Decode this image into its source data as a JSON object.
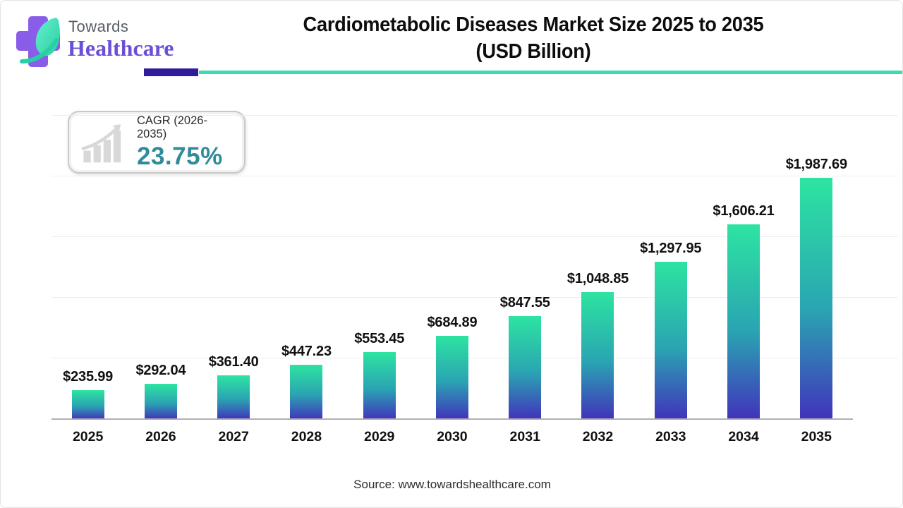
{
  "logo": {
    "brand_top": "Towards",
    "brand_bottom": "Healthcare"
  },
  "header": {
    "title_line1": "Cardiometabolic Diseases Market Size 2025 to 2035",
    "title_line2": "(USD Billion)"
  },
  "cagr_badge": {
    "label": "CAGR (2026-2035)",
    "value": "23.75%"
  },
  "chart_data": {
    "type": "bar",
    "title": "Cardiometabolic Diseases Market Size 2025 to 2035 (USD Billion)",
    "categories": [
      "2025",
      "2026",
      "2027",
      "2028",
      "2029",
      "2030",
      "2031",
      "2032",
      "2033",
      "2034",
      "2035"
    ],
    "values": [
      235.99,
      292.04,
      361.4,
      447.23,
      553.45,
      684.89,
      847.55,
      1048.85,
      1297.95,
      1606.21,
      1987.69
    ],
    "labels": [
      "$235.99",
      "$292.04",
      "$361.40",
      "$447.23",
      "$553.45",
      "$684.89",
      "$847.55",
      "$1,048.85",
      "$1,297.95",
      "$1,606.21",
      "$1,987.69"
    ],
    "xlabel": "",
    "ylabel": "",
    "ylim": [
      0,
      2500
    ],
    "grid_step": 500,
    "grid_on": true,
    "legend_position": "none",
    "bar_color_top": "#2de4a1",
    "bar_color_mid": "#2aa4b2",
    "bar_color_bottom": "#4133bb"
  },
  "footer": {
    "source": "Source: www.towardshealthcare.com"
  },
  "colors": {
    "brand_purple": "#6b50d7",
    "cross_purple": "#8a5de9",
    "leaf_teal": "#52e8c4",
    "underline_indigo": "#2f1c9c",
    "underline_teal": "#3cdcb2",
    "cagr_teal": "#2f8c9b",
    "axis_gray": "#b1b1b1",
    "gridline_gray": "#ededed",
    "title_black": "#0d0d0d"
  }
}
